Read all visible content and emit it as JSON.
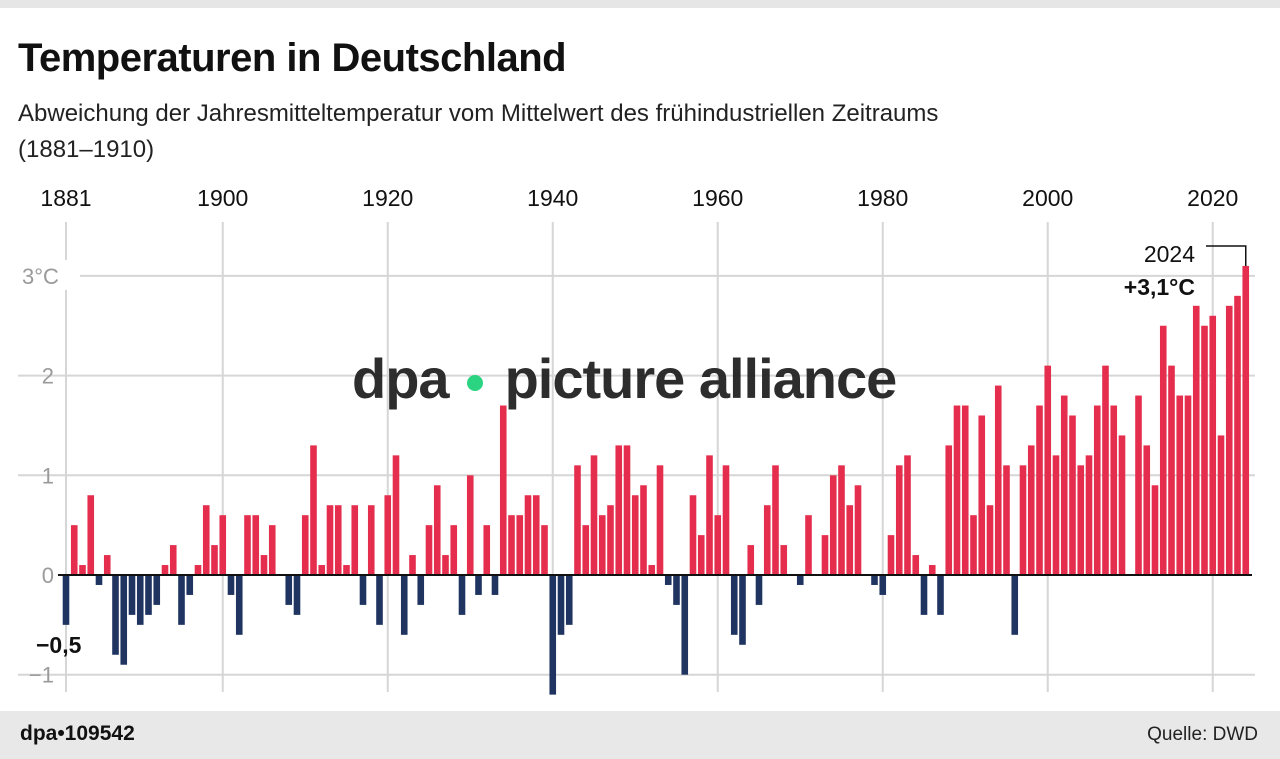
{
  "chart_data": {
    "type": "bar",
    "title": "Temperaturen in Deutschland",
    "subtitle": "Abweichung der Jahresmitteltemperatur vom Mittelwert des frühindustriellen Zeitraums (1881–1910)",
    "x_start": 1881,
    "x_end": 2024,
    "x_ticks": [
      "1881",
      "1900",
      "1920",
      "1940",
      "1960",
      "1980",
      "2000",
      "2020"
    ],
    "y_ticks": [
      {
        "value": 3,
        "label": "3°C"
      },
      {
        "value": 2,
        "label": "2"
      },
      {
        "value": 1,
        "label": "1"
      },
      {
        "value": 0,
        "label": "0"
      },
      {
        "value": -1,
        "label": "−1"
      }
    ],
    "ylim": [
      -1.2,
      3.5
    ],
    "grid": true,
    "colors": {
      "positive": "#e52e4d",
      "negative": "#1f3461"
    },
    "values": [
      -0.5,
      0.5,
      0.1,
      0.8,
      -0.1,
      0.2,
      -0.8,
      -0.9,
      -0.4,
      -0.5,
      -0.4,
      -0.3,
      0.1,
      0.3,
      -0.5,
      -0.2,
      0.1,
      0.7,
      0.3,
      0.6,
      -0.2,
      -0.6,
      0.6,
      0.6,
      0.2,
      0.5,
      0.0,
      -0.3,
      -0.4,
      0.6,
      1.3,
      0.1,
      0.7,
      0.7,
      0.1,
      0.7,
      -0.3,
      0.7,
      -0.5,
      0.8,
      1.2,
      -0.6,
      0.2,
      -0.3,
      0.5,
      0.9,
      0.2,
      0.5,
      -0.4,
      1.0,
      -0.2,
      0.5,
      -0.2,
      1.7,
      0.6,
      0.6,
      0.8,
      0.8,
      0.5,
      -1.2,
      -0.6,
      -0.5,
      1.1,
      0.5,
      1.2,
      0.6,
      0.7,
      1.3,
      1.3,
      0.8,
      0.9,
      0.1,
      1.1,
      -0.1,
      -0.3,
      -1.0,
      0.8,
      0.4,
      1.2,
      0.6,
      1.1,
      -0.6,
      -0.7,
      0.3,
      -0.3,
      0.7,
      1.1,
      0.3,
      0.0,
      -0.1,
      0.6,
      0.0,
      0.4,
      1.0,
      1.1,
      0.7,
      0.9,
      0.0,
      -0.1,
      -0.2,
      0.4,
      1.1,
      1.2,
      0.2,
      -0.4,
      0.1,
      -0.4,
      1.3,
      1.7,
      1.7,
      0.6,
      1.6,
      0.7,
      1.9,
      1.1,
      -0.6,
      1.1,
      1.3,
      1.7,
      2.1,
      1.2,
      1.8,
      1.6,
      1.1,
      1.2,
      1.7,
      2.1,
      1.7,
      1.4,
      0.0,
      1.8,
      1.3,
      0.9,
      2.5,
      2.1,
      1.8,
      1.8,
      2.7,
      2.5,
      2.6,
      1.4,
      2.7,
      2.8,
      3.1
    ],
    "annotations": [
      {
        "year": 1881,
        "label": "−0,5"
      },
      {
        "year": 2024,
        "label_year": "2024",
        "label": "+3,1°C"
      }
    ]
  },
  "watermark": {
    "left": "dpa",
    "right": "picture alliance",
    "dot_color": "#1fd27a"
  },
  "footer": {
    "id": "dpa•109542",
    "source": "Quelle: DWD"
  }
}
